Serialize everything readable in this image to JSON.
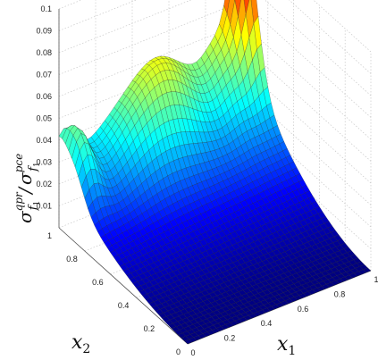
{
  "chart_data": {
    "type": "surface",
    "title": "",
    "xlabel": {
      "base": "x",
      "sub": "1"
    },
    "ylabel": {
      "base": "x",
      "sub": "2"
    },
    "zlabel": {
      "num_base": "σ",
      "num_sub": "f",
      "num_subsub": "1",
      "num_sup": "qpr",
      "slash": "/",
      "den_base": "σ",
      "den_sub": "f",
      "den_subsub": "1",
      "den_sup": "pce"
    },
    "xlim": [
      0,
      1
    ],
    "ylim": [
      0,
      1
    ],
    "zlim": [
      0,
      0.1
    ],
    "x_ticks": [
      "0",
      "0.2",
      "0.4",
      "0.6",
      "0.8",
      "1"
    ],
    "y_ticks": [
      "0",
      "0.2",
      "0.4",
      "0.6",
      "0.8",
      "1"
    ],
    "z_ticks": [
      "0.01",
      "0.02",
      "0.03",
      "0.04",
      "0.05",
      "0.06",
      "0.07",
      "0.08",
      "0.09",
      "0.1"
    ],
    "grid": true,
    "colormap": "jet",
    "grid_resolution": 40,
    "key_values": [
      {
        "x1": 0.0,
        "x2": 1.0,
        "value": 0.01
      },
      {
        "x1": 0.05,
        "x2": 0.9,
        "value": 0.033
      },
      {
        "x1": 0.55,
        "x2": 0.95,
        "value": 0.065
      },
      {
        "x1": 1.0,
        "x2": 1.0,
        "value": 0.1
      },
      {
        "x1": 1.0,
        "x2": 0.0,
        "value": 0.0
      },
      {
        "x1": 0.0,
        "x2": 0.0,
        "value": 0.0
      }
    ]
  }
}
